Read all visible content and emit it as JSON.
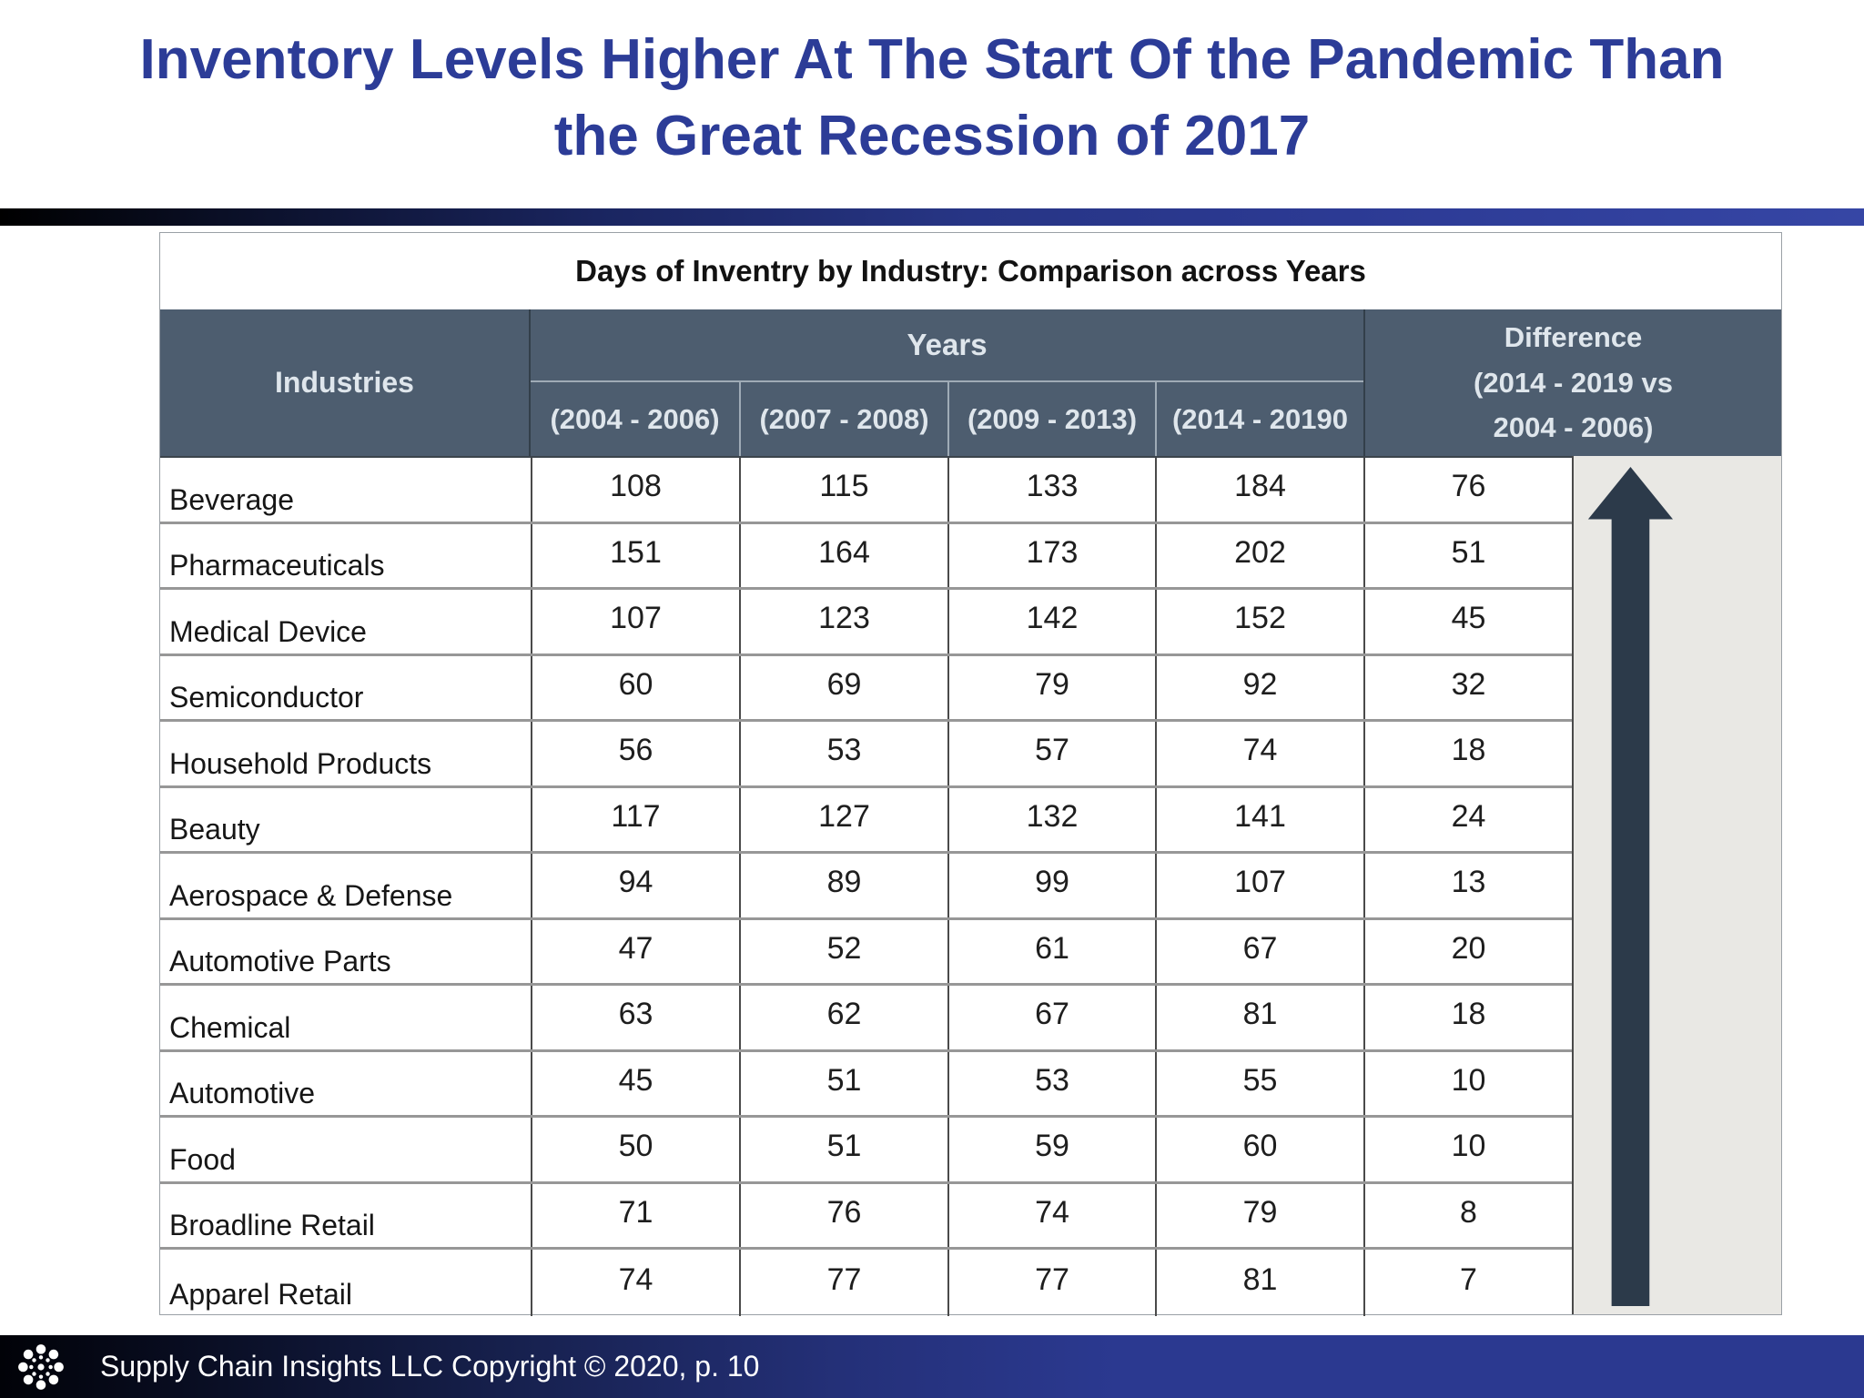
{
  "title": {
    "line1": "Inventory Levels Higher At The Start Of the Pandemic Than",
    "line2": "the Great Recession of 2017"
  },
  "table": {
    "caption": "Days of Inventry by Industry: Comparison across Years",
    "header": {
      "industries": "Industries",
      "years_group": "Years",
      "year_columns": [
        "(2004 - 2006)",
        "(2007 - 2008)",
        "(2009 - 2013)",
        "(2014 - 20190"
      ],
      "difference_lines": [
        "Difference",
        "(2014 - 2019 vs",
        "2004 - 2006)"
      ]
    },
    "rows": [
      {
        "industry": "Beverage",
        "values": [
          "108",
          "115",
          "133",
          "184"
        ],
        "difference": "76"
      },
      {
        "industry": "Pharmaceuticals",
        "values": [
          "151",
          "164",
          "173",
          "202"
        ],
        "difference": "51"
      },
      {
        "industry": "Medical Device",
        "values": [
          "107",
          "123",
          "142",
          "152"
        ],
        "difference": "45"
      },
      {
        "industry": "Semiconductor",
        "values": [
          "60",
          "69",
          "79",
          "92"
        ],
        "difference": "32"
      },
      {
        "industry": "Household Products",
        "values": [
          "56",
          "53",
          "57",
          "74"
        ],
        "difference": "18"
      },
      {
        "industry": "Beauty",
        "values": [
          "117",
          "127",
          "132",
          "141"
        ],
        "difference": "24"
      },
      {
        "industry": "Aerospace & Defense",
        "values": [
          "94",
          "89",
          "99",
          "107"
        ],
        "difference": "13"
      },
      {
        "industry": "Automotive Parts",
        "values": [
          "47",
          "52",
          "61",
          "67"
        ],
        "difference": "20"
      },
      {
        "industry": "Chemical",
        "values": [
          "63",
          "62",
          "67",
          "81"
        ],
        "difference": "18"
      },
      {
        "industry": "Automotive",
        "values": [
          "45",
          "51",
          "53",
          "55"
        ],
        "difference": "10"
      },
      {
        "industry": "Food",
        "values": [
          "50",
          "51",
          "59",
          "60"
        ],
        "difference": "10"
      },
      {
        "industry": "Broadline Retail",
        "values": [
          "71",
          "76",
          "74",
          "79"
        ],
        "difference": "8"
      },
      {
        "industry": "Apparel Retail",
        "values": [
          "74",
          "77",
          "77",
          "81"
        ],
        "difference": "7"
      }
    ]
  },
  "footer": {
    "text": "Supply Chain Insights LLC Copyright © 2020, p. 10"
  },
  "colors": {
    "title_blue": "#2c3c97",
    "accent_blue": "#2b3990",
    "header_bg": "#4d5d6f",
    "header_text": "#dfe6ec",
    "arrow": "#2c3a4a",
    "panel_bg": "#e9e8e4"
  },
  "chart_data": {
    "type": "table",
    "title": "Days of Inventry by Industry: Comparison across Years",
    "columns": [
      "Industries",
      "(2004 - 2006)",
      "(2007 - 2008)",
      "(2009 - 2013)",
      "(2014 - 20190",
      "Difference (2014 - 2019 vs 2004 - 2006)"
    ],
    "rows": [
      [
        "Beverage",
        108,
        115,
        133,
        184,
        76
      ],
      [
        "Pharmaceuticals",
        151,
        164,
        173,
        202,
        51
      ],
      [
        "Medical Device",
        107,
        123,
        142,
        152,
        45
      ],
      [
        "Semiconductor",
        60,
        69,
        79,
        92,
        32
      ],
      [
        "Household Products",
        56,
        53,
        57,
        74,
        18
      ],
      [
        "Beauty",
        117,
        127,
        132,
        141,
        24
      ],
      [
        "Aerospace & Defense",
        94,
        89,
        99,
        107,
        13
      ],
      [
        "Automotive Parts",
        47,
        52,
        61,
        67,
        20
      ],
      [
        "Chemical",
        63,
        62,
        67,
        81,
        18
      ],
      [
        "Automotive",
        45,
        51,
        53,
        55,
        10
      ],
      [
        "Food",
        50,
        51,
        59,
        60,
        10
      ],
      [
        "Broadline Retail",
        71,
        76,
        74,
        79,
        8
      ],
      [
        "Apparel Retail",
        74,
        77,
        77,
        81,
        7
      ]
    ]
  }
}
